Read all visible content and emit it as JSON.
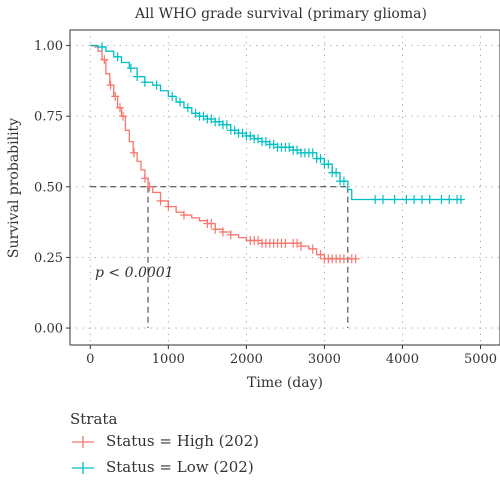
{
  "chart_data": {
    "type": "line",
    "title": "All WHO grade survival (primary glioma)",
    "xlabel": "Time (day)",
    "ylabel": "Survival probability",
    "xlim": [
      0,
      5000
    ],
    "ylim": [
      0,
      1
    ],
    "x_ticks": [
      0,
      1000,
      2000,
      3000,
      4000,
      5000
    ],
    "y_ticks": [
      0.0,
      0.25,
      0.5,
      0.75,
      1.0
    ],
    "x_tick_labels": [
      "0",
      "1000",
      "2000",
      "3000",
      "4000",
      "5000"
    ],
    "y_tick_labels": [
      "0.00",
      "0.25",
      "0.50",
      "0.75",
      "1.00"
    ],
    "grid": true,
    "annotation": "p < 0.0001",
    "median_lines": [
      {
        "series": "Status = High (202)",
        "x": 740,
        "y": 0.5
      },
      {
        "series": "Status = Low (202)",
        "x": 3300,
        "y": 0.5
      }
    ],
    "legend_title": "Strata",
    "legend_position": "bottom",
    "series": [
      {
        "name": "Status = High (202)",
        "color": "#F8766D",
        "points": [
          [
            0,
            1.0
          ],
          [
            60,
            0.995
          ],
          [
            100,
            0.98
          ],
          [
            150,
            0.95
          ],
          [
            200,
            0.9
          ],
          [
            250,
            0.86
          ],
          [
            300,
            0.82
          ],
          [
            350,
            0.78
          ],
          [
            400,
            0.75
          ],
          [
            450,
            0.7
          ],
          [
            500,
            0.66
          ],
          [
            550,
            0.62
          ],
          [
            600,
            0.59
          ],
          [
            650,
            0.56
          ],
          [
            700,
            0.53
          ],
          [
            740,
            0.5
          ],
          [
            800,
            0.48
          ],
          [
            900,
            0.45
          ],
          [
            1000,
            0.43
          ],
          [
            1100,
            0.41
          ],
          [
            1200,
            0.4
          ],
          [
            1300,
            0.39
          ],
          [
            1400,
            0.38
          ],
          [
            1500,
            0.37
          ],
          [
            1600,
            0.35
          ],
          [
            1700,
            0.34
          ],
          [
            1800,
            0.33
          ],
          [
            1900,
            0.32
          ],
          [
            2000,
            0.31
          ],
          [
            2200,
            0.3
          ],
          [
            2400,
            0.3
          ],
          [
            2600,
            0.3
          ],
          [
            2700,
            0.29
          ],
          [
            2800,
            0.28
          ],
          [
            2900,
            0.26
          ],
          [
            3000,
            0.245
          ],
          [
            3200,
            0.245
          ],
          [
            3400,
            0.245
          ]
        ],
        "censored": [
          180,
          260,
          320,
          380,
          420,
          560,
          700,
          760,
          900,
          1000,
          1200,
          1500,
          1550,
          1600,
          1700,
          1800,
          2050,
          2100,
          2150,
          2200,
          2250,
          2300,
          2350,
          2400,
          2450,
          2500,
          2600,
          2650,
          2700,
          2850,
          2950,
          3000,
          3050,
          3100,
          3150,
          3200,
          3250,
          3350,
          3400
        ]
      },
      {
        "name": "Status = Low (202)",
        "color": "#00BFC4",
        "points": [
          [
            0,
            1.0
          ],
          [
            100,
            0.995
          ],
          [
            200,
            0.98
          ],
          [
            300,
            0.96
          ],
          [
            400,
            0.94
          ],
          [
            500,
            0.92
          ],
          [
            600,
            0.89
          ],
          [
            700,
            0.87
          ],
          [
            800,
            0.86
          ],
          [
            900,
            0.84
          ],
          [
            1000,
            0.82
          ],
          [
            1100,
            0.8
          ],
          [
            1200,
            0.78
          ],
          [
            1300,
            0.76
          ],
          [
            1400,
            0.75
          ],
          [
            1500,
            0.74
          ],
          [
            1600,
            0.73
          ],
          [
            1700,
            0.72
          ],
          [
            1800,
            0.7
          ],
          [
            1900,
            0.69
          ],
          [
            2000,
            0.68
          ],
          [
            2100,
            0.67
          ],
          [
            2200,
            0.66
          ],
          [
            2300,
            0.65
          ],
          [
            2400,
            0.64
          ],
          [
            2500,
            0.64
          ],
          [
            2600,
            0.63
          ],
          [
            2700,
            0.62
          ],
          [
            2800,
            0.62
          ],
          [
            2900,
            0.6
          ],
          [
            3000,
            0.58
          ],
          [
            3100,
            0.55
          ],
          [
            3200,
            0.52
          ],
          [
            3300,
            0.49
          ],
          [
            3350,
            0.455
          ],
          [
            4750,
            0.455
          ]
        ],
        "censored": [
          150,
          350,
          520,
          600,
          700,
          850,
          1050,
          1150,
          1250,
          1350,
          1400,
          1450,
          1500,
          1550,
          1600,
          1650,
          1700,
          1750,
          1800,
          1850,
          1900,
          1950,
          2000,
          2050,
          2100,
          2150,
          2200,
          2250,
          2300,
          2350,
          2400,
          2450,
          2500,
          2550,
          2600,
          2650,
          2700,
          2750,
          2800,
          2850,
          2900,
          2950,
          3000,
          3050,
          3100,
          3150,
          3200,
          3250,
          3650,
          3750,
          3900,
          4050,
          4150,
          4250,
          4350,
          4500,
          4600,
          4700,
          4750
        ]
      }
    ]
  }
}
